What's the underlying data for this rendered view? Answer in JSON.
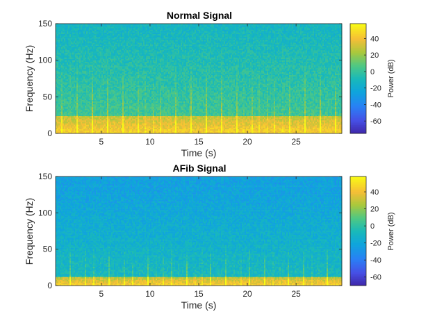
{
  "chart_data": [
    {
      "type": "heatmap",
      "title": "Normal Signal",
      "xlabel": "Time (s)",
      "ylabel": "Frequency (Hz)",
      "xlim": [
        0.3,
        29.7
      ],
      "ylim": [
        0,
        150
      ],
      "xticks": [
        5,
        10,
        15,
        20,
        25
      ],
      "yticks": [
        0,
        50,
        100,
        150
      ],
      "colorbar": {
        "label": "Power (dB)",
        "range": [
          -75,
          58
        ],
        "ticks": [
          -60,
          -40,
          -20,
          0,
          20,
          40
        ],
        "colormap": "parula"
      },
      "description_of_values": {
        "low_band_hz": [
          0,
          25
        ],
        "low_band_power_db": [
          20,
          50
        ],
        "high_band_power_db": [
          -25,
          0
        ],
        "beat_period_s": 0.78,
        "beat_ridges_reach_hz": 100
      }
    },
    {
      "type": "heatmap",
      "title": "AFib Signal",
      "xlabel": "Time (s)",
      "ylabel": "Frequency (Hz)",
      "xlim": [
        0.3,
        29.7
      ],
      "ylim": [
        0,
        150
      ],
      "xticks": [
        5,
        10,
        15,
        20,
        25
      ],
      "yticks": [
        0,
        50,
        100,
        150
      ],
      "colorbar": {
        "label": "Power (dB)",
        "range": [
          -70,
          58
        ],
        "ticks": [
          -60,
          -40,
          -20,
          0,
          20,
          40
        ],
        "colormap": "parula"
      },
      "description_of_values": {
        "low_band_hz": [
          0,
          12
        ],
        "low_band_power_db": [
          20,
          50
        ],
        "high_band_power_db": [
          -35,
          -10
        ],
        "beat_period_s": 0.8,
        "beat_ridges_reach_hz": 60
      }
    }
  ],
  "colors": {
    "axis": "#262626",
    "background": "#ffffff"
  }
}
